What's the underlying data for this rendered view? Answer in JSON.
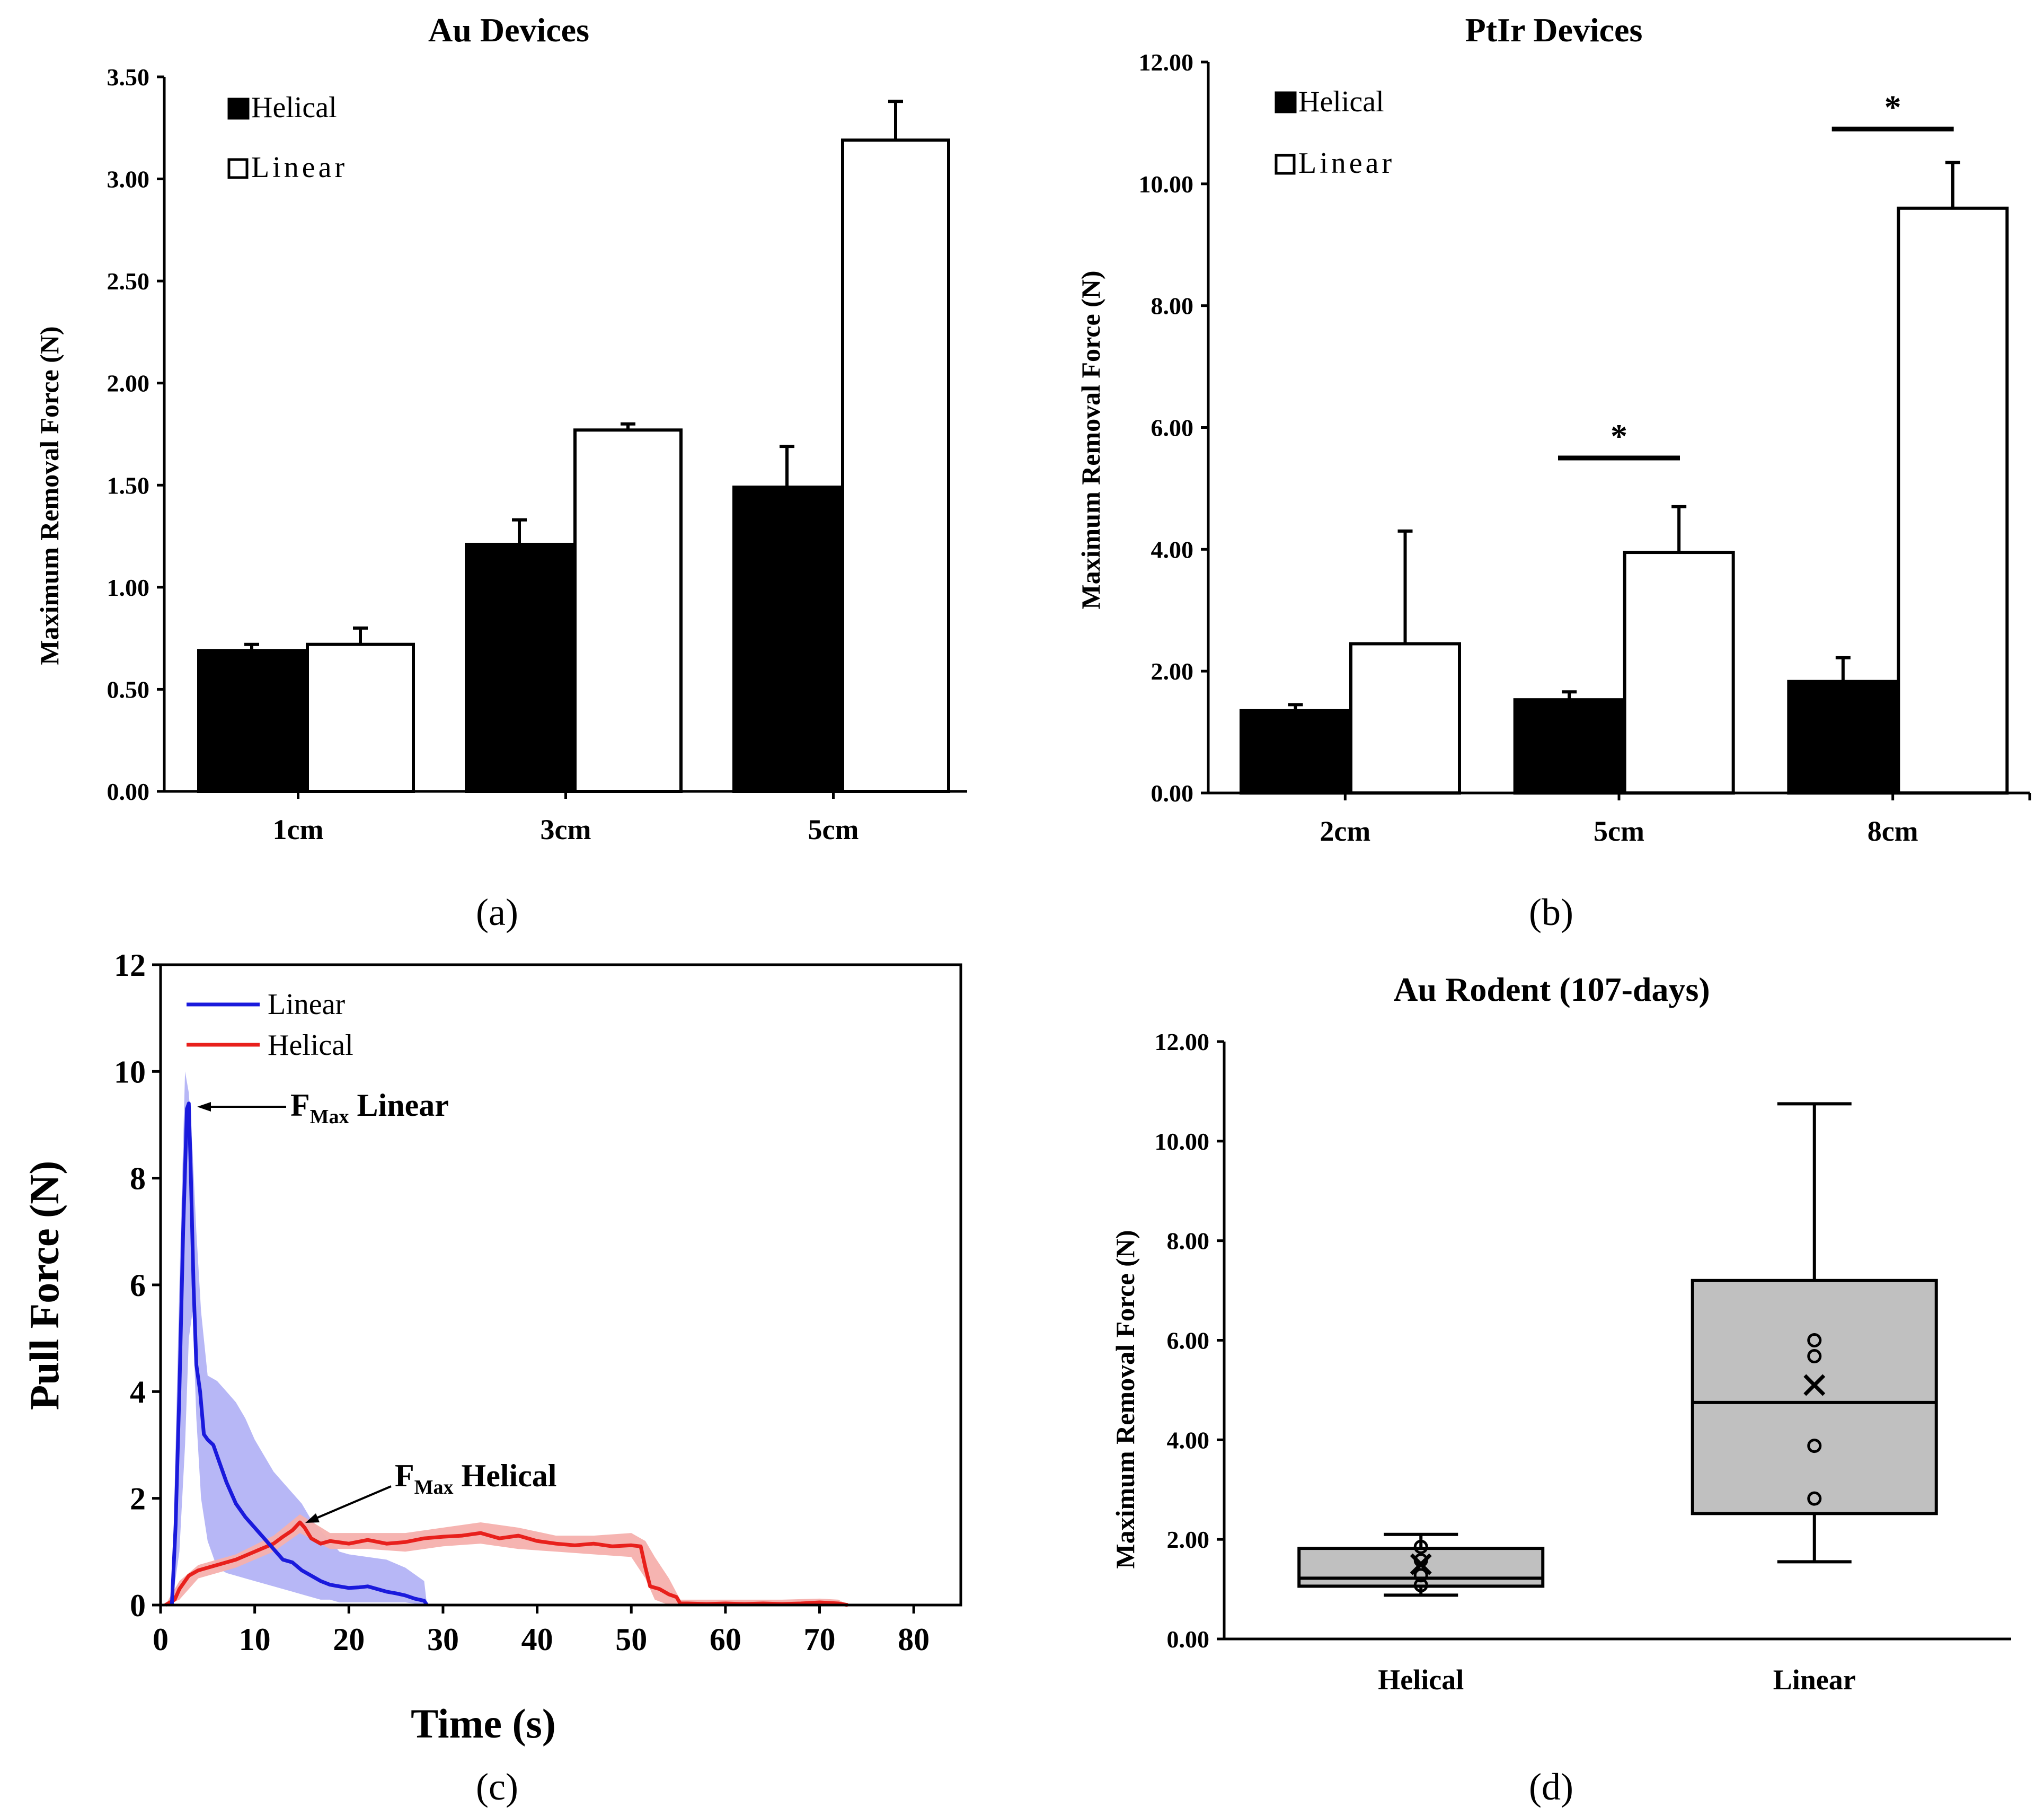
{
  "colors": {
    "black": "#000000",
    "white": "#ffffff",
    "linear": "#1a1adc",
    "linear_band": "#b3b3f5",
    "helical": "#e8201c",
    "helical_band": "#f6b0ad",
    "box_fill": "#c0c0c0"
  },
  "chart_data": [
    {
      "id": "a",
      "type": "bar",
      "panel_label": "(a)",
      "title": "Au Devices",
      "xlabel": "",
      "ylabel": "Maximum Removal Force (N)",
      "categories": [
        "1cm",
        "3cm",
        "5cm"
      ],
      "ylim": [
        0,
        3.5
      ],
      "yticks": [
        "0.00",
        "0.50",
        "1.00",
        "1.50",
        "2.00",
        "2.50",
        "3.00",
        "3.50"
      ],
      "series": [
        {
          "name": "Helical",
          "values": [
            0.69,
            1.21,
            1.49
          ],
          "errors": [
            0.03,
            0.12,
            0.2
          ],
          "fill": "black"
        },
        {
          "name": "Linear",
          "values": [
            0.72,
            1.77,
            3.19
          ],
          "errors": [
            0.08,
            0.03,
            0.19
          ],
          "fill": "white"
        }
      ],
      "significance": []
    },
    {
      "id": "b",
      "type": "bar",
      "panel_label": "(b)",
      "title": "PtIr Devices",
      "xlabel": "",
      "ylabel": "Maximum Removal Force (N)",
      "categories": [
        "2cm",
        "5cm",
        "8cm"
      ],
      "ylim": [
        0,
        12
      ],
      "yticks": [
        "0.00",
        "2.00",
        "4.00",
        "6.00",
        "8.00",
        "10.00",
        "12.00"
      ],
      "series": [
        {
          "name": "Helical",
          "values": [
            1.35,
            1.53,
            1.83
          ],
          "errors": [
            0.1,
            0.13,
            0.39
          ],
          "fill": "black"
        },
        {
          "name": "Linear",
          "values": [
            2.45,
            3.95,
            9.6
          ],
          "errors": [
            1.85,
            0.75,
            0.75
          ],
          "fill": "white"
        }
      ],
      "significance": [
        {
          "category": "5cm",
          "label": "*",
          "y": 5.5
        },
        {
          "category": "8cm",
          "label": "*",
          "y": 10.9
        }
      ]
    },
    {
      "id": "c",
      "type": "line",
      "panel_label": "(c)",
      "title": "",
      "xlabel": "Time (s)",
      "ylabel": "Pull Force (N)",
      "xlim": [
        0,
        85
      ],
      "ylim": [
        0,
        12
      ],
      "xticks": [
        "0",
        "10",
        "20",
        "30",
        "40",
        "50",
        "60",
        "70",
        "80"
      ],
      "yticks": [
        "0",
        "2",
        "4",
        "6",
        "8",
        "10",
        "12"
      ],
      "series": [
        {
          "name": "Linear",
          "color": "linear",
          "x": [
            1.2,
            1.6,
            2.0,
            2.4,
            2.8,
            3.0,
            3.2,
            3.5,
            3.8,
            4.2,
            4.6,
            5.0,
            5.6,
            6.2,
            7,
            8,
            9,
            10,
            11,
            12,
            13,
            14,
            15,
            16,
            17,
            18,
            19,
            20,
            21,
            22,
            23,
            24,
            25,
            26,
            27,
            28,
            28.3
          ],
          "y": [
            0.0,
            1.5,
            4.0,
            7.0,
            9.3,
            9.4,
            8.2,
            6.0,
            4.5,
            4.0,
            3.2,
            3.1,
            3.0,
            2.7,
            2.3,
            1.9,
            1.65,
            1.45,
            1.25,
            1.05,
            0.85,
            0.8,
            0.65,
            0.55,
            0.45,
            0.38,
            0.35,
            0.32,
            0.33,
            0.35,
            0.3,
            0.25,
            0.22,
            0.18,
            0.12,
            0.08,
            0.0
          ]
        },
        {
          "name": "Helical",
          "color": "helical",
          "x": [
            0.5,
            1,
            1.5,
            2,
            3,
            4,
            6,
            8,
            10,
            12,
            13,
            14,
            14.8,
            15.3,
            16,
            17,
            18,
            20,
            22,
            24,
            26,
            28,
            30,
            32,
            34,
            36,
            38,
            40,
            42,
            44,
            46,
            48,
            50,
            51,
            51.5,
            52,
            53,
            54,
            54.8,
            55.2,
            56,
            58,
            60,
            62,
            64,
            66,
            68,
            70,
            71,
            72,
            73
          ],
          "y": [
            0,
            0.05,
            0.1,
            0.3,
            0.55,
            0.65,
            0.75,
            0.85,
            1.0,
            1.15,
            1.28,
            1.4,
            1.55,
            1.45,
            1.25,
            1.15,
            1.2,
            1.15,
            1.22,
            1.15,
            1.18,
            1.25,
            1.28,
            1.3,
            1.35,
            1.25,
            1.3,
            1.2,
            1.15,
            1.12,
            1.15,
            1.1,
            1.12,
            1.1,
            0.7,
            0.35,
            0.3,
            0.2,
            0.15,
            0.03,
            0.03,
            0.02,
            0.03,
            0.02,
            0.03,
            0.02,
            0.03,
            0.05,
            0.04,
            0.03,
            0.0
          ]
        }
      ],
      "bands": [
        {
          "series": "Linear",
          "x": [
            1.2,
            2.0,
            2.6,
            3.0,
            3.4,
            3.8,
            4.3,
            5,
            6,
            7,
            8,
            9,
            10,
            11,
            12,
            13,
            14,
            15,
            16,
            17,
            18,
            19,
            20,
            22,
            24,
            26,
            28,
            28.3
          ],
          "upper": [
            0.0,
            6.0,
            10.0,
            9.6,
            8.5,
            7.0,
            5.5,
            4.3,
            4.2,
            4.0,
            3.8,
            3.5,
            3.1,
            2.8,
            2.5,
            2.3,
            2.1,
            1.9,
            1.6,
            1.4,
            1.2,
            1.0,
            0.95,
            0.9,
            0.85,
            0.7,
            0.45,
            0.0
          ],
          "lower": [
            0.0,
            1.0,
            3.0,
            5.0,
            5.5,
            3.5,
            2.0,
            1.2,
            0.7,
            0.6,
            0.55,
            0.5,
            0.45,
            0.4,
            0.35,
            0.3,
            0.25,
            0.2,
            0.15,
            0.1,
            0.1,
            0.05,
            0.05,
            0.05,
            0.05,
            0.05,
            0.0,
            0.0
          ]
        },
        {
          "series": "Helical",
          "x": [
            0.5,
            2,
            4,
            8,
            12,
            14.8,
            18,
            22,
            26,
            30,
            34,
            38,
            42,
            46,
            50,
            51.5,
            52.5,
            54,
            55.2,
            60,
            66,
            70,
            72,
            73
          ],
          "upper": [
            0,
            0.45,
            0.75,
            0.95,
            1.3,
            1.7,
            1.35,
            1.35,
            1.35,
            1.45,
            1.55,
            1.45,
            1.3,
            1.3,
            1.35,
            1.2,
            0.9,
            0.5,
            0.1,
            0.1,
            0.1,
            0.12,
            0.1,
            0.0
          ],
          "lower": [
            0,
            0.1,
            0.5,
            0.7,
            1.0,
            1.35,
            1.05,
            1.05,
            1.0,
            1.1,
            1.15,
            1.05,
            1.0,
            0.95,
            0.9,
            0.5,
            0.1,
            0.0,
            0.0,
            0.0,
            0.0,
            0.0,
            0.0,
            0.0
          ]
        }
      ],
      "annotations": [
        {
          "label": "F",
          "sub": "Max",
          "text": " Linear",
          "x": 3.0,
          "y": 9.35
        },
        {
          "label": "F",
          "sub": "Max",
          "text": " Helical",
          "x": 14.8,
          "y": 1.55
        }
      ]
    },
    {
      "id": "d",
      "type": "box",
      "panel_label": "(d)",
      "title": "Au Rodent (107-days)",
      "xlabel": "",
      "ylabel": "Maximum Removal Force (N)",
      "categories": [
        "Helical",
        "Linear"
      ],
      "ylim": [
        0,
        12
      ],
      "yticks": [
        "0.00",
        "2.00",
        "4.00",
        "6.00",
        "8.00",
        "10.00",
        "12.00"
      ],
      "boxes": [
        {
          "name": "Helical",
          "min": 0.88,
          "q1": 1.06,
          "median": 1.22,
          "q3": 1.82,
          "max": 2.1,
          "mean": 1.5,
          "points": [
            1.08,
            1.28,
            1.58,
            1.85
          ]
        },
        {
          "name": "Linear",
          "min": 1.55,
          "q1": 2.52,
          "median": 4.75,
          "q3": 7.2,
          "max": 10.75,
          "mean": 5.1,
          "points": [
            2.82,
            3.88,
            5.68,
            6.0
          ]
        }
      ]
    }
  ]
}
